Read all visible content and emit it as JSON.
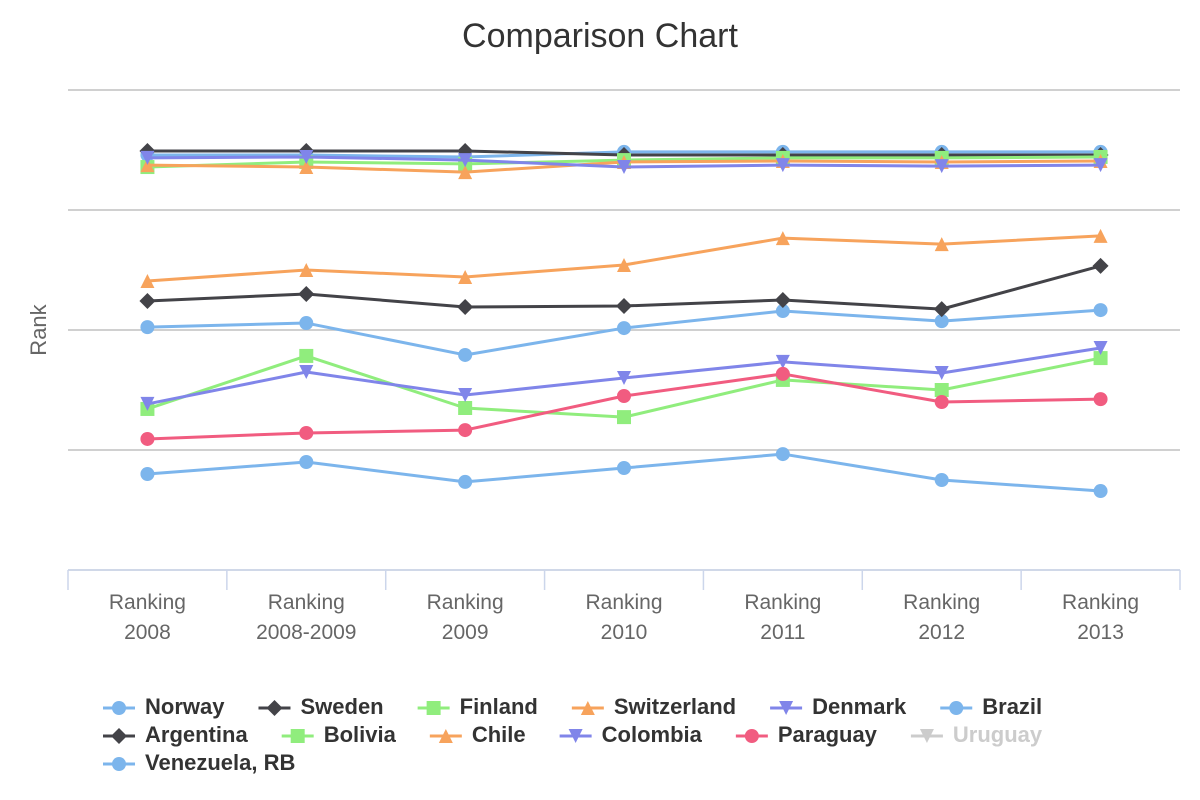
{
  "chart_data": {
    "type": "line",
    "title": "Comparison Chart",
    "y_label": "Rank",
    "y_reversed": true,
    "grid": true,
    "categories": [
      "Ranking 2008",
      "Ranking 2008-2009",
      "Ranking 2009",
      "Ranking 2010",
      "Ranking 2011",
      "Ranking 2012",
      "Ranking 2013"
    ],
    "ylim": [
      0,
      200
    ],
    "yticks": [
      0,
      50,
      100,
      150,
      200
    ],
    "legend": "bottom",
    "series": [
      {
        "name": "Norway",
        "color": "#7cb5ec",
        "marker": "circle",
        "values": [
          27.1,
          27.1,
          27.9,
          25.8,
          25.8,
          25.8,
          25.8
        ]
      },
      {
        "name": "Sweden",
        "color": "#434348",
        "marker": "diamond",
        "values": [
          25.4,
          25.4,
          25.4,
          27.1,
          27.1,
          27.1,
          27.1
        ]
      },
      {
        "name": "Finland",
        "color": "#90ed7d",
        "marker": "square",
        "values": [
          32.1,
          30,
          30.8,
          29.2,
          28.3,
          28.3,
          27.9
        ]
      },
      {
        "name": "Switzerland",
        "color": "#f7a35c",
        "marker": "triangle",
        "values": [
          31.3,
          32.1,
          34.2,
          30,
          29.6,
          30,
          29.6
        ]
      },
      {
        "name": "Denmark",
        "color": "#8085e9",
        "marker": "triangle-down",
        "values": [
          28.3,
          27.9,
          29.2,
          32.1,
          31.3,
          31.7,
          31.3
        ]
      },
      {
        "name": "Brazil",
        "color": "#7cb5ec",
        "marker": "circle",
        "values": [
          98.8,
          97.1,
          110.4,
          99.2,
          92.1,
          96.3,
          91.7
        ]
      },
      {
        "name": "Argentina",
        "color": "#434348",
        "marker": "diamond",
        "values": [
          87.9,
          85,
          90.4,
          90,
          87.5,
          91.3,
          73.3
        ]
      },
      {
        "name": "Bolivia",
        "color": "#90ed7d",
        "marker": "square",
        "values": [
          132.9,
          110.8,
          132.5,
          136.3,
          120.8,
          125,
          111.7
        ]
      },
      {
        "name": "Chile",
        "color": "#f7a35c",
        "marker": "triangle",
        "values": [
          79.6,
          75,
          77.9,
          72.9,
          61.7,
          64.2,
          60.8
        ]
      },
      {
        "name": "Colombia",
        "color": "#8085e9",
        "marker": "triangle-down",
        "values": [
          130.8,
          117.5,
          127.1,
          120,
          113.3,
          117.9,
          107.5
        ]
      },
      {
        "name": "Paraguay",
        "color": "#f15c80",
        "marker": "circle",
        "values": [
          145.4,
          142.9,
          141.7,
          127.5,
          118.3,
          130,
          128.8
        ]
      },
      {
        "name": "Uruguay",
        "color": "#cccccc",
        "marker": "triangle-down",
        "visible": false,
        "values": [
          null,
          null,
          null,
          null,
          null,
          null,
          null
        ]
      },
      {
        "name": "Venezuela, RB",
        "color": "#7cb5ec",
        "marker": "circle",
        "values": [
          160,
          155,
          163.3,
          157.5,
          151.7,
          162.5,
          167.1
        ]
      }
    ]
  }
}
